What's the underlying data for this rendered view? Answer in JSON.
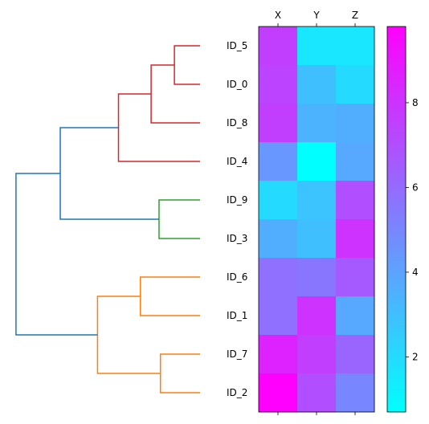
{
  "chart_data": {
    "type": "heatmap",
    "title": "",
    "rows": [
      "ID_5",
      "ID_0",
      "ID_8",
      "ID_4",
      "ID_9",
      "ID_3",
      "ID_6",
      "ID_1",
      "ID_7",
      "ID_2"
    ],
    "columns": [
      "X",
      "Y",
      "Z"
    ],
    "values": [
      [
        7.6,
        1.6,
        1.6
      ],
      [
        7.4,
        3.0,
        2.0
      ],
      [
        7.6,
        3.4,
        3.6
      ],
      [
        4.4,
        0.7,
        3.8
      ],
      [
        2.0,
        2.8,
        7.0
      ],
      [
        3.6,
        3.0,
        8.0
      ],
      [
        5.8,
        5.6,
        6.6
      ],
      [
        5.8,
        8.0,
        3.8
      ],
      [
        8.6,
        7.6,
        6.2
      ],
      [
        9.8,
        7.0,
        5.0
      ]
    ],
    "colormap": {
      "name": "cool",
      "from": "#00ffff",
      "to": "#ff00ff"
    },
    "colorbar": {
      "vmin": 0.7,
      "vmax": 9.8,
      "ticks": [
        2,
        4,
        6,
        8
      ]
    },
    "dendrogram": {
      "orientation": "left",
      "leaf_order": [
        "ID_5",
        "ID_0",
        "ID_8",
        "ID_4",
        "ID_9",
        "ID_3",
        "ID_6",
        "ID_1",
        "ID_7",
        "ID_2"
      ],
      "links": [
        {
          "a": "ID_5",
          "b": "ID_0",
          "height": 0.55,
          "color": "#d62728"
        },
        {
          "a": "c0",
          "b": "ID_8",
          "height": 1.05,
          "color": "#d62728"
        },
        {
          "a": "c1",
          "b": "ID_4",
          "height": 1.75,
          "color": "#d62728"
        },
        {
          "a": "ID_9",
          "b": "ID_3",
          "height": 0.88,
          "color": "#2ca02c"
        },
        {
          "a": "c2",
          "b": "c3",
          "height": 3.0,
          "color": "#1f77b4"
        },
        {
          "a": "ID_6",
          "b": "ID_1",
          "height": 1.28,
          "color": "#ff7f0e"
        },
        {
          "a": "ID_7",
          "b": "ID_2",
          "height": 0.85,
          "color": "#ff7f0e"
        },
        {
          "a": "c5",
          "b": "c6",
          "height": 2.2,
          "color": "#ff7f0e"
        },
        {
          "a": "c4",
          "b": "c7",
          "height": 3.95,
          "color": "#1f77b4"
        }
      ]
    }
  }
}
